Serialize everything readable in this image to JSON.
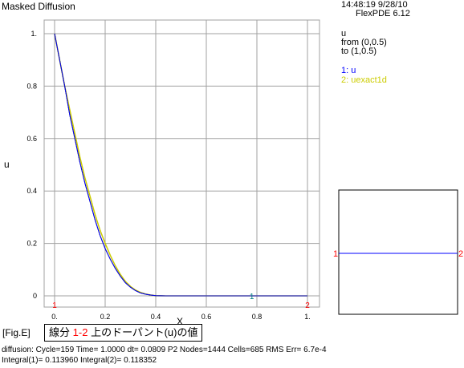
{
  "header": {
    "title": "Masked Diffusion",
    "timestamp": "14:48:19 9/28/10",
    "version": "FlexPDE 6.12"
  },
  "legend": {
    "variable": "u",
    "from_label": "from (0,0.5)",
    "to_label": "to (1,0.5)",
    "series_1": "1: u",
    "series_2": "2: uexact1d"
  },
  "colors": {
    "grid": "#a0a0a0",
    "u": "#0000ff",
    "uexact": "#cccc00",
    "dark_curve": "#000000",
    "marker": "#ff0000",
    "teal_marker": "#008080"
  },
  "chart_data": {
    "type": "line",
    "xlabel": "X",
    "ylabel": "u",
    "xlim": [
      0,
      1
    ],
    "ylim": [
      0,
      1
    ],
    "x_ticks": [
      "0.",
      "0.2",
      "0.4",
      "0.6",
      "0.8",
      "1."
    ],
    "y_ticks": [
      "0",
      "0.2",
      "0.4",
      "0.6",
      "0.8",
      "1."
    ],
    "endpoint_labels": [
      "1",
      "2"
    ],
    "series_marker_label": "1",
    "series": [
      {
        "name": "u",
        "x": [
          0,
          0.02,
          0.04,
          0.06,
          0.08,
          0.1,
          0.12,
          0.14,
          0.16,
          0.18,
          0.2,
          0.22,
          0.24,
          0.26,
          0.28,
          0.3,
          0.32,
          0.34,
          0.36,
          0.38,
          0.4,
          0.44,
          0.5,
          0.6,
          0.7,
          0.8,
          0.9,
          1.0
        ],
        "y": [
          1.0,
          0.9,
          0.8,
          0.69,
          0.6,
          0.51,
          0.43,
          0.36,
          0.29,
          0.23,
          0.18,
          0.14,
          0.105,
          0.075,
          0.05,
          0.033,
          0.02,
          0.011,
          0.006,
          0.003,
          0.001,
          0.0,
          0,
          0,
          0,
          0,
          0,
          0
        ]
      },
      {
        "name": "uexact1d",
        "x": [
          0,
          0.02,
          0.04,
          0.06,
          0.08,
          0.1,
          0.12,
          0.14,
          0.16,
          0.18,
          0.2,
          0.22,
          0.24,
          0.26,
          0.28,
          0.3,
          0.32,
          0.34,
          0.36,
          0.38,
          0.4,
          0.44,
          0.5,
          0.6,
          0.7,
          0.8,
          0.9,
          1.0
        ],
        "y": [
          1.0,
          0.9,
          0.8,
          0.71,
          0.62,
          0.53,
          0.45,
          0.38,
          0.31,
          0.25,
          0.2,
          0.155,
          0.115,
          0.082,
          0.055,
          0.036,
          0.022,
          0.013,
          0.007,
          0.003,
          0.001,
          0.0,
          0,
          0,
          0,
          0,
          0,
          0
        ]
      }
    ]
  },
  "caption": {
    "fig_tag": "[Fig.E]",
    "prefix": "線分",
    "range": "1-2",
    "suffix": "上のドーパント(u)の値"
  },
  "footer": {
    "line1": "diffusion:  Cycle=159  Time= 1.0000  dt= 0.0809  P2  Nodes=1444 Cells=685 RMS Err= 6.7e-4",
    "line2": "Integral(1)=  0.113960 Integral(2)=  0.118352"
  },
  "inset": {
    "label_left": "1",
    "label_right": "2"
  }
}
